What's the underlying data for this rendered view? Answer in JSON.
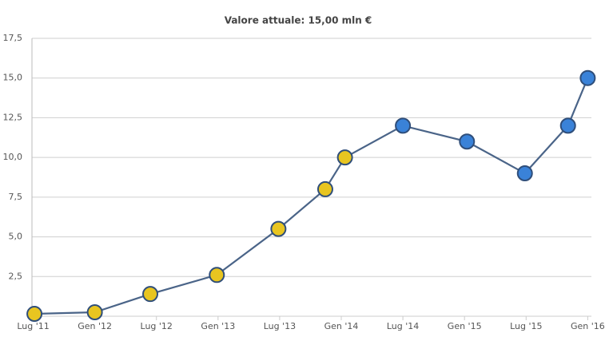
{
  "chart_data": {
    "type": "line",
    "title": "Valore attuale: 15,00 mln €",
    "x": [
      2011.51,
      2012.0,
      2012.45,
      2012.99,
      2013.49,
      2013.87,
      2014.03,
      2014.5,
      2015.02,
      2015.49,
      2015.84,
      2016.0
    ],
    "series": [
      {
        "color": "#4a6488",
        "values": [
          0.15,
          0.25,
          1.4,
          2.6,
          5.5,
          8.0,
          10.0,
          12.0,
          11.0,
          9.0,
          12.0,
          15.0
        ],
        "marker_colors": [
          "#e8c520",
          "#e8c520",
          "#e8c520",
          "#e8c520",
          "#e8c520",
          "#e8c520",
          "#e8c520",
          "#3a82d8",
          "#3a82d8",
          "#3a82d8",
          "#3a82d8",
          "#3a82d8"
        ]
      }
    ],
    "xlim": [
      2011.49,
      2016.03
    ],
    "xticks": [
      {
        "value": 2011.5,
        "label": "Lug '11"
      },
      {
        "value": 2012.0,
        "label": "Gen '12"
      },
      {
        "value": 2012.5,
        "label": "Lug '12"
      },
      {
        "value": 2013.0,
        "label": "Gen '13"
      },
      {
        "value": 2013.5,
        "label": "Lug '13"
      },
      {
        "value": 2014.0,
        "label": "Gen '14"
      },
      {
        "value": 2014.5,
        "label": "Lug '14"
      },
      {
        "value": 2015.0,
        "label": "Gen '15"
      },
      {
        "value": 2015.5,
        "label": "Lug '15"
      },
      {
        "value": 2016.0,
        "label": "Gen '16"
      }
    ],
    "ylim": [
      0,
      17.5
    ],
    "yticks": [
      {
        "value": 2.5,
        "label": "2,5"
      },
      {
        "value": 5.0,
        "label": "5,0"
      },
      {
        "value": 7.5,
        "label": "7,5"
      },
      {
        "value": 10.0,
        "label": "10,0"
      },
      {
        "value": 12.5,
        "label": "12,5"
      },
      {
        "value": 15.0,
        "label": "15,0"
      },
      {
        "value": 17.5,
        "label": "17,5"
      }
    ],
    "grid": true
  }
}
